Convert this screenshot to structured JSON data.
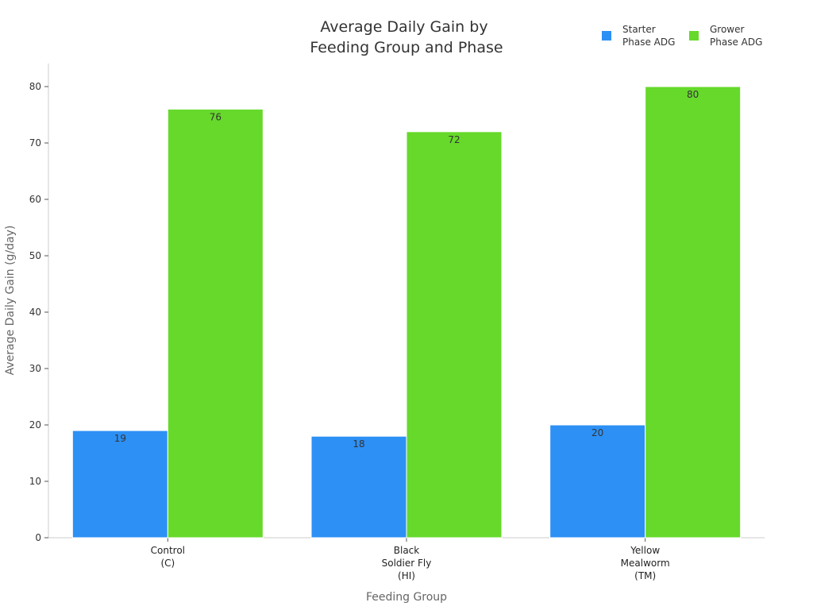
{
  "chart_data": {
    "type": "bar",
    "title": [
      "Average Daily Gain by",
      "Feeding Group and Phase"
    ],
    "xlabel": "Feeding Group",
    "ylabel": "Average Daily Gain (g/day)",
    "ylim": [
      0,
      80
    ],
    "yticks": [
      0,
      10,
      20,
      30,
      40,
      50,
      60,
      70,
      80
    ],
    "categories": [
      [
        "Control",
        "(C)"
      ],
      [
        "Black",
        "Soldier Fly",
        "(HI)"
      ],
      [
        "Yellow",
        "Mealworm",
        "(TM)"
      ]
    ],
    "series": [
      {
        "name": [
          "Starter",
          "Phase ADG"
        ],
        "color": "#2d90f5",
        "values": [
          19,
          18,
          20
        ]
      },
      {
        "name": [
          "Grower",
          "Phase ADG"
        ],
        "color": "#66d92b",
        "values": [
          76,
          72,
          80
        ]
      }
    ],
    "grid": false,
    "legend": "top-right"
  }
}
